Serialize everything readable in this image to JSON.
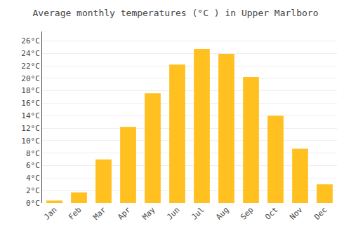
{
  "chart_data": {
    "type": "bar",
    "title": "Average monthly temperatures (°C ) in Upper Marlboro",
    "categories": [
      "Jan",
      "Feb",
      "Mar",
      "Apr",
      "May",
      "Jun",
      "Jul",
      "Aug",
      "Sep",
      "Oct",
      "Nov",
      "Dec"
    ],
    "values": [
      0.4,
      1.7,
      7.0,
      12.2,
      17.6,
      22.2,
      24.7,
      23.9,
      20.2,
      14.0,
      8.7,
      3.0
    ],
    "color": "#FFC020",
    "ylim": [
      0,
      27.5
    ],
    "yticks": [
      {
        "value": 0,
        "label": "0°C"
      },
      {
        "value": 2,
        "label": "2°C"
      },
      {
        "value": 4,
        "label": "4°C"
      },
      {
        "value": 6,
        "label": "6°C"
      },
      {
        "value": 8,
        "label": "8°C"
      },
      {
        "value": 10,
        "label": "10°C"
      },
      {
        "value": 12,
        "label": "12°C"
      },
      {
        "value": 14,
        "label": "14°C"
      },
      {
        "value": 16,
        "label": "16°C"
      },
      {
        "value": 18,
        "label": "18°C"
      },
      {
        "value": 20,
        "label": "20°C"
      },
      {
        "value": 22,
        "label": "22°C"
      },
      {
        "value": 24,
        "label": "24°C"
      },
      {
        "value": 26,
        "label": "26°C"
      }
    ],
    "grid": true
  }
}
